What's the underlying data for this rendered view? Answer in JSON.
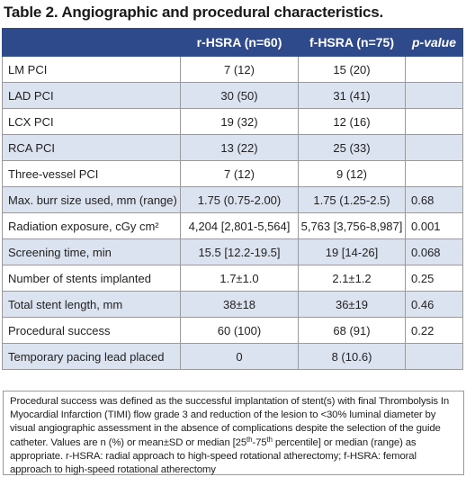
{
  "title": "Table 2. Angiographic and procedural characteristics.",
  "header": {
    "col0": "",
    "col1": "r-HSRA (n=60)",
    "col2": "f-HSRA (n=75)",
    "col3": "p-value"
  },
  "rows": [
    {
      "label": "LM PCI",
      "r": "7 (12)",
      "f": "15 (20)",
      "p": ""
    },
    {
      "label": "LAD PCI",
      "r": "30 (50)",
      "f": "31 (41)",
      "p": ""
    },
    {
      "label": "LCX PCI",
      "r": "19 (32)",
      "f": "12 (16)",
      "p": ""
    },
    {
      "label": "RCA PCI",
      "r": "13 (22)",
      "f": "25 (33)",
      "p": ""
    },
    {
      "label": "Three-vessel PCI",
      "r": "7 (12)",
      "f": "9 (12)",
      "p": ""
    },
    {
      "label": "Max. burr size used, mm (range)",
      "r": "1.75 (0.75-2.00)",
      "f": "1.75 (1.25-2.5)",
      "p": "0.68"
    },
    {
      "label": "Radiation exposure, cGy cm²",
      "r": "4,204 [2,801-5,564]",
      "f": "5,763 [3,756-8,987]",
      "p": "0.001"
    },
    {
      "label": "Screening time, min",
      "r": "15.5 [12.2-19.5]",
      "f": "19 [14-26]",
      "p": "0.068"
    },
    {
      "label": "Number of stents implanted",
      "r": "1.7±1.0",
      "f": "2.1±1.2",
      "p": "0.25"
    },
    {
      "label": "Total stent length, mm",
      "r": "38±18",
      "f": "36±19",
      "p": "0.46"
    },
    {
      "label": "Procedural success",
      "r": "60 (100)",
      "f": "68 (91)",
      "p": "0.22"
    },
    {
      "label": "Temporary pacing lead placed",
      "r": "0",
      "f": "8 (10.6)",
      "p": ""
    }
  ],
  "footnote": {
    "part1": "Procedural success was defined as the successful implantation of stent(s) with final Thrombolysis In Myocardial Infarction (TIMI) flow grade 3 and reduction of the lesion to <30% luminal diameter by visual angiographic assessment in the absence of complications despite the selection of the guide catheter. Values are n (%) or mean±SD or median [25",
    "sup1": "th",
    "part2": "-75",
    "sup2": "th",
    "part3": " percentile] or median (range) as appropriate. r-HSRA: radial approach to high-speed rotational atherectomy; f-HSRA: femoral approach to high-speed rotational atherectomy"
  },
  "colors": {
    "header_bg": "#2f4a8a",
    "stripe_bg": "#dbe3f1",
    "border": "#9a9a9a"
  }
}
